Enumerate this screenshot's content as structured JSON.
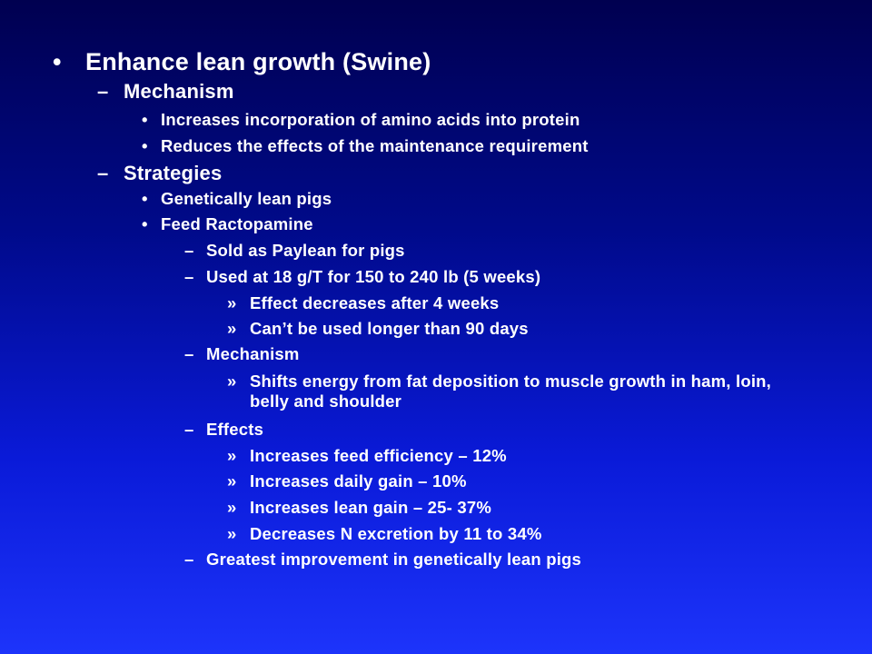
{
  "slide": {
    "items": [
      {
        "level": 1,
        "marker": "•",
        "text": "Enhance lean growth (Swine)"
      },
      {
        "level": 2,
        "marker": "–",
        "text": "Mechanism"
      },
      {
        "level": 3,
        "marker": "•",
        "text": "Increases incorporation of amino acids into protein"
      },
      {
        "level": 3,
        "marker": "•",
        "text": "Reduces the effects of the maintenance requirement"
      },
      {
        "level": 2,
        "marker": "–",
        "text": "Strategies"
      },
      {
        "level": 3,
        "marker": "•",
        "text": "Genetically lean pigs"
      },
      {
        "level": 3,
        "marker": "•",
        "text": "Feed Ractopamine"
      },
      {
        "level": 4,
        "marker": "–",
        "text": "Sold as Paylean for pigs"
      },
      {
        "level": 4,
        "marker": "–",
        "text": "Used at 18 g/T for 150 to 240 lb (5 weeks)"
      },
      {
        "level": 5,
        "marker": "»",
        "text": "Effect decreases after 4 weeks"
      },
      {
        "level": 5,
        "marker": "»",
        "text": "Can’t be used longer than 90 days"
      },
      {
        "level": 4,
        "marker": "–",
        "text": "Mechanism"
      },
      {
        "level": 5,
        "marker": "»",
        "text": "Shifts energy from fat deposition to muscle growth in ham, loin, belly and shoulder"
      },
      {
        "level": 4,
        "marker": "–",
        "text": "Effects"
      },
      {
        "level": 5,
        "marker": "»",
        "text": "Increases feed efficiency – 12%"
      },
      {
        "level": 5,
        "marker": "»",
        "text": "Increases daily gain – 10%"
      },
      {
        "level": 5,
        "marker": "»",
        "text": "Increases lean gain – 25- 37%"
      },
      {
        "level": 5,
        "marker": "»",
        "text": "Decreases N excretion by 11 to 34%"
      },
      {
        "level": 4,
        "marker": "–",
        "text": "Greatest improvement in genetically lean pigs"
      }
    ]
  }
}
